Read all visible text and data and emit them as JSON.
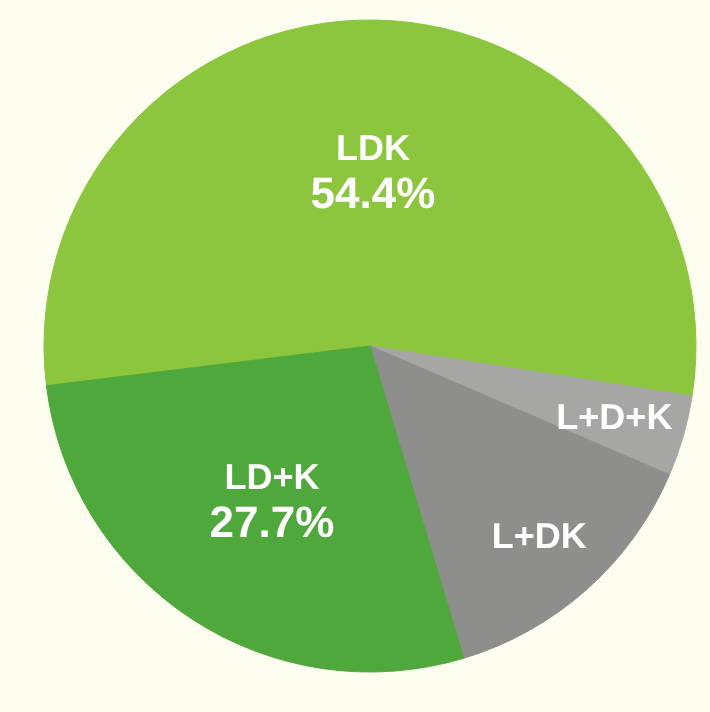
{
  "chart_data": {
    "type": "pie",
    "categories": [
      "LDK",
      "L+D+K",
      "L+DK",
      "LD+K"
    ],
    "values": [
      54.4,
      4.0,
      13.9,
      27.7
    ],
    "colors": [
      "#8cc63e",
      "#a6a6a4",
      "#8e8e8c",
      "#4fa83b"
    ],
    "value_labels": [
      "54.4%",
      null,
      null,
      "27.7%"
    ]
  }
}
